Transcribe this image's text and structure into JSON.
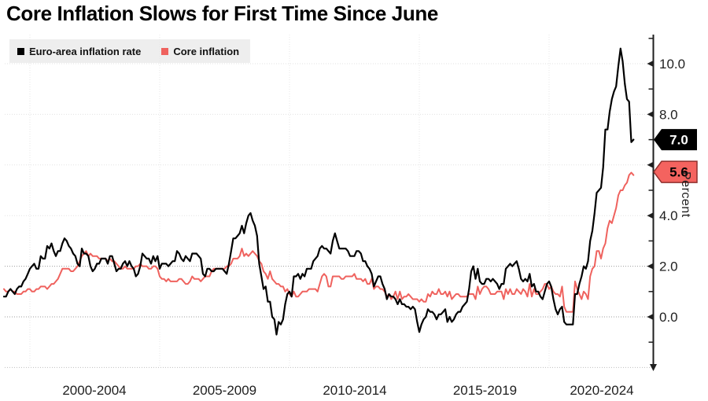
{
  "header": {
    "title": "Core Inflation Slows for First Time Since June"
  },
  "legend": {
    "items": [
      {
        "label": "Euro-area inflation rate",
        "color": "#000000"
      },
      {
        "label": "Core inflation",
        "color": "#ef625e"
      }
    ]
  },
  "chart_data": {
    "type": "line",
    "title": "Core Inflation Slows for First Time Since June",
    "x_axis": {
      "labels": [
        "2000-2004",
        "2005-2009",
        "2010-2014",
        "2015-2019",
        "2020-2024"
      ],
      "gridline_years": [
        2000,
        2005,
        2010,
        2015,
        2020
      ],
      "start_year": 1999,
      "frequency": "monthly",
      "range": [
        "1999-01",
        "2023-04"
      ]
    },
    "y_axis": {
      "title": "Percent",
      "tick_values": [
        0,
        2,
        4,
        6,
        8,
        10
      ],
      "tick_labels": [
        "0.0",
        "2.0",
        "4.0",
        "6.0",
        "8.0",
        "10.0"
      ],
      "minor_tick_values": [
        -1,
        1,
        3,
        5,
        7,
        9,
        11
      ],
      "emphasized_gridlines": [
        0,
        2
      ],
      "bottom_gridline": -2,
      "range": [
        -2,
        11.2
      ],
      "grid": true
    },
    "legend_position": "top-left",
    "series": [
      {
        "name": "Euro-area inflation rate",
        "color": "#000000",
        "end_label": {
          "text": "7.0",
          "value": 7.0,
          "fill": "#000000",
          "text_color": "#ffffff"
        },
        "values": [
          0.8,
          0.8,
          1.0,
          1.1,
          1.0,
          0.9,
          1.1,
          1.2,
          1.2,
          1.4,
          1.5,
          1.7,
          1.9,
          2.0,
          2.1,
          1.9,
          1.9,
          2.4,
          2.3,
          2.3,
          2.8,
          2.7,
          2.9,
          2.6,
          2.4,
          2.6,
          2.6,
          2.9,
          3.1,
          3.0,
          2.8,
          2.7,
          2.5,
          2.4,
          2.1,
          2.0,
          2.7,
          2.5,
          2.5,
          2.4,
          2.0,
          1.8,
          1.9,
          2.1,
          2.1,
          2.3,
          2.3,
          2.3,
          2.1,
          2.4,
          2.4,
          2.1,
          1.8,
          1.9,
          1.9,
          2.1,
          2.2,
          2.0,
          2.2,
          2.0,
          1.9,
          1.6,
          1.7,
          2.0,
          2.5,
          2.4,
          2.3,
          2.3,
          2.1,
          2.4,
          2.2,
          2.4,
          1.9,
          2.1,
          2.1,
          2.1,
          2.0,
          2.1,
          2.2,
          2.2,
          2.6,
          2.5,
          2.3,
          2.2,
          2.4,
          2.3,
          2.2,
          2.5,
          2.5,
          2.5,
          2.4,
          2.3,
          1.7,
          1.6,
          1.9,
          1.9,
          1.8,
          1.8,
          1.9,
          1.9,
          1.9,
          1.9,
          1.8,
          1.7,
          2.1,
          2.6,
          3.1,
          3.1,
          3.2,
          3.3,
          3.6,
          3.3,
          3.7,
          4.0,
          4.1,
          3.8,
          3.6,
          3.2,
          2.1,
          1.6,
          1.1,
          1.2,
          0.6,
          0.6,
          0.0,
          -0.1,
          -0.7,
          -0.2,
          -0.3,
          -0.1,
          0.5,
          0.9,
          1.0,
          0.8,
          1.6,
          1.6,
          1.7,
          1.5,
          1.7,
          1.6,
          1.9,
          1.9,
          1.9,
          2.2,
          2.3,
          2.4,
          2.7,
          2.8,
          2.7,
          2.7,
          2.6,
          2.5,
          3.0,
          3.3,
          3.0,
          2.7,
          2.7,
          2.7,
          2.7,
          2.6,
          2.4,
          2.4,
          2.4,
          2.6,
          2.6,
          2.5,
          2.2,
          2.2,
          2.0,
          1.9,
          1.7,
          1.2,
          1.4,
          1.6,
          1.6,
          1.3,
          1.1,
          0.7,
          0.9,
          0.8,
          0.8,
          0.7,
          0.5,
          0.7,
          0.5,
          0.5,
          0.4,
          0.4,
          0.3,
          0.4,
          0.3,
          -0.2,
          -0.6,
          -0.3,
          -0.1,
          0.0,
          0.3,
          0.2,
          0.2,
          0.1,
          -0.1,
          0.1,
          0.1,
          0.2,
          0.3,
          -0.2,
          0.0,
          -0.2,
          -0.1,
          0.1,
          0.2,
          0.2,
          0.4,
          0.5,
          0.6,
          1.1,
          1.8,
          2.0,
          1.5,
          1.9,
          1.4,
          1.3,
          1.3,
          1.5,
          1.5,
          1.4,
          1.5,
          1.4,
          1.3,
          1.1,
          1.3,
          1.3,
          1.9,
          2.0,
          2.1,
          2.0,
          2.1,
          2.2,
          1.9,
          1.5,
          1.4,
          1.5,
          1.4,
          1.7,
          1.2,
          1.3,
          1.0,
          1.0,
          0.8,
          0.7,
          1.0,
          1.3,
          1.4,
          1.2,
          0.7,
          0.3,
          0.1,
          0.3,
          0.4,
          -0.2,
          -0.3,
          -0.3,
          -0.3,
          -0.3,
          0.9,
          0.9,
          1.3,
          1.6,
          2.0,
          1.9,
          2.2,
          3.0,
          3.4,
          4.1,
          4.9,
          5.0,
          5.1,
          5.9,
          7.4,
          7.4,
          8.1,
          8.6,
          8.9,
          9.1,
          9.9,
          10.6,
          10.1,
          9.2,
          8.6,
          8.5,
          6.9,
          7.0
        ]
      },
      {
        "name": "Core inflation",
        "color": "#ef625e",
        "end_label": {
          "text": "5.6",
          "value": 5.6,
          "fill": "#f4635f",
          "border": "#8f2f2d",
          "text_color": "#000000"
        },
        "values": [
          1.1,
          1.0,
          1.0,
          1.1,
          1.0,
          1.0,
          0.9,
          0.9,
          0.9,
          1.0,
          1.0,
          1.1,
          1.1,
          1.0,
          1.0,
          1.1,
          1.1,
          1.2,
          1.2,
          1.2,
          1.1,
          1.2,
          1.3,
          1.3,
          1.4,
          1.5,
          1.7,
          1.9,
          1.9,
          1.9,
          1.9,
          1.8,
          1.8,
          1.9,
          2.0,
          2.2,
          2.4,
          2.5,
          2.6,
          2.4,
          2.5,
          2.4,
          2.4,
          2.4,
          2.3,
          2.3,
          2.3,
          2.3,
          2.2,
          2.3,
          2.2,
          2.2,
          2.1,
          2.0,
          1.9,
          1.9,
          2.0,
          1.9,
          1.9,
          1.9,
          1.9,
          2.0,
          2.0,
          2.1,
          2.0,
          2.0,
          2.0,
          1.9,
          1.9,
          2.0,
          2.0,
          1.9,
          1.6,
          1.5,
          1.5,
          1.4,
          1.5,
          1.4,
          1.4,
          1.4,
          1.4,
          1.5,
          1.5,
          1.4,
          1.3,
          1.3,
          1.4,
          1.6,
          1.5,
          1.5,
          1.5,
          1.4,
          1.5,
          1.6,
          1.6,
          1.6,
          1.8,
          1.9,
          1.9,
          1.9,
          1.9,
          1.9,
          1.9,
          2.0,
          2.0,
          2.1,
          2.3,
          2.3,
          2.3,
          2.4,
          2.7,
          2.4,
          2.5,
          2.4,
          2.5,
          2.6,
          2.5,
          2.4,
          2.2,
          2.1,
          1.8,
          1.7,
          1.5,
          1.8,
          1.5,
          1.4,
          1.3,
          1.3,
          1.2,
          1.2,
          1.0,
          1.1,
          0.9,
          0.8,
          1.0,
          0.8,
          0.8,
          0.9,
          1.0,
          1.0,
          1.0,
          1.1,
          1.1,
          1.1,
          1.1,
          1.0,
          1.3,
          1.6,
          1.7,
          1.6,
          1.2,
          1.2,
          1.6,
          1.6,
          1.6,
          1.6,
          1.5,
          1.5,
          1.6,
          1.6,
          1.6,
          1.6,
          1.7,
          1.5,
          1.5,
          1.5,
          1.4,
          1.5,
          1.3,
          1.3,
          1.5,
          1.1,
          1.2,
          1.2,
          1.1,
          1.1,
          1.0,
          0.8,
          0.9,
          0.7,
          0.8,
          1.0,
          0.7,
          1.0,
          0.7,
          0.8,
          0.8,
          0.9,
          0.8,
          0.7,
          0.7,
          0.7,
          0.6,
          0.7,
          0.6,
          0.6,
          0.9,
          0.8,
          1.0,
          0.9,
          0.9,
          1.1,
          0.9,
          0.9,
          1.0,
          0.8,
          1.0,
          0.7,
          0.8,
          0.9,
          0.9,
          0.8,
          0.8,
          0.8,
          0.8,
          0.9,
          0.9,
          0.9,
          0.7,
          1.2,
          0.9,
          1.1,
          1.2,
          1.2,
          1.1,
          0.9,
          0.9,
          0.9,
          1.0,
          1.0,
          1.0,
          0.7,
          1.1,
          0.9,
          1.1,
          0.9,
          0.9,
          1.1,
          1.0,
          0.9,
          1.1,
          1.0,
          0.8,
          1.3,
          0.8,
          1.1,
          0.9,
          0.9,
          1.0,
          1.1,
          1.3,
          1.3,
          1.1,
          1.2,
          1.0,
          0.9,
          0.9,
          0.8,
          1.2,
          0.4,
          0.2,
          0.2,
          0.2,
          0.2,
          1.4,
          1.1,
          0.9,
          0.7,
          1.0,
          0.9,
          0.7,
          1.6,
          1.9,
          2.0,
          2.6,
          2.6,
          2.3,
          2.7,
          2.9,
          3.5,
          3.8,
          3.7,
          4.0,
          4.3,
          4.8,
          5.0,
          5.0,
          5.2,
          5.3,
          5.6,
          5.7,
          5.6
        ]
      }
    ]
  }
}
